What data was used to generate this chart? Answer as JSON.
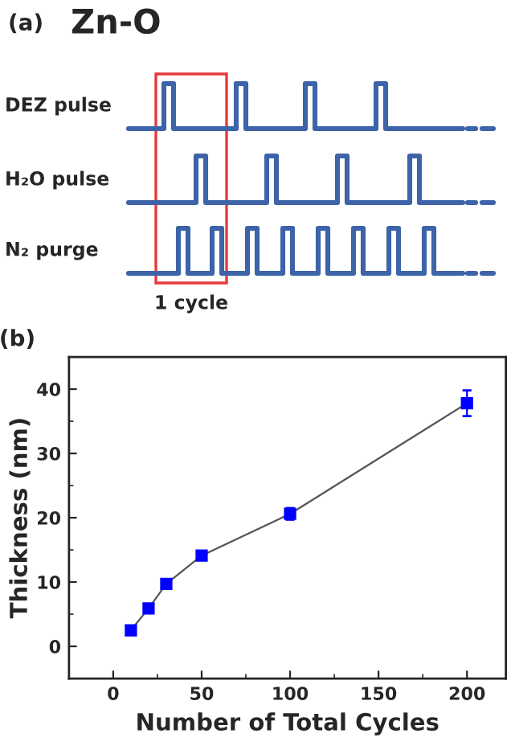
{
  "chart_data": [
    {
      "type": "other",
      "title": "(a)",
      "subtitle": "Zn-O",
      "annotations": [
        "DEZ pulse",
        "H₂O pulse",
        "N₂ purge",
        "1 cycle"
      ]
    },
    {
      "type": "line",
      "title": "(b)",
      "xlabel": "Number of Total Cycles",
      "ylabel": "Thickness (nm)",
      "x": [
        10,
        20,
        30,
        50,
        100,
        200
      ],
      "series": [
        {
          "color": "#0000ff",
          "values": [
            2.5,
            5.9,
            9.7,
            14.1,
            20.6,
            37.8
          ],
          "errors": [
            null,
            null,
            null,
            0.5,
            0.9,
            2.0
          ]
        }
      ],
      "marker": "square",
      "line_style": "solid",
      "xlim": [
        -25,
        222
      ],
      "ylim": [
        -5,
        45
      ],
      "xticks": [
        0,
        50,
        100,
        150,
        200
      ],
      "yticks": [
        0,
        10,
        20,
        30,
        40
      ],
      "grid": false
    }
  ]
}
